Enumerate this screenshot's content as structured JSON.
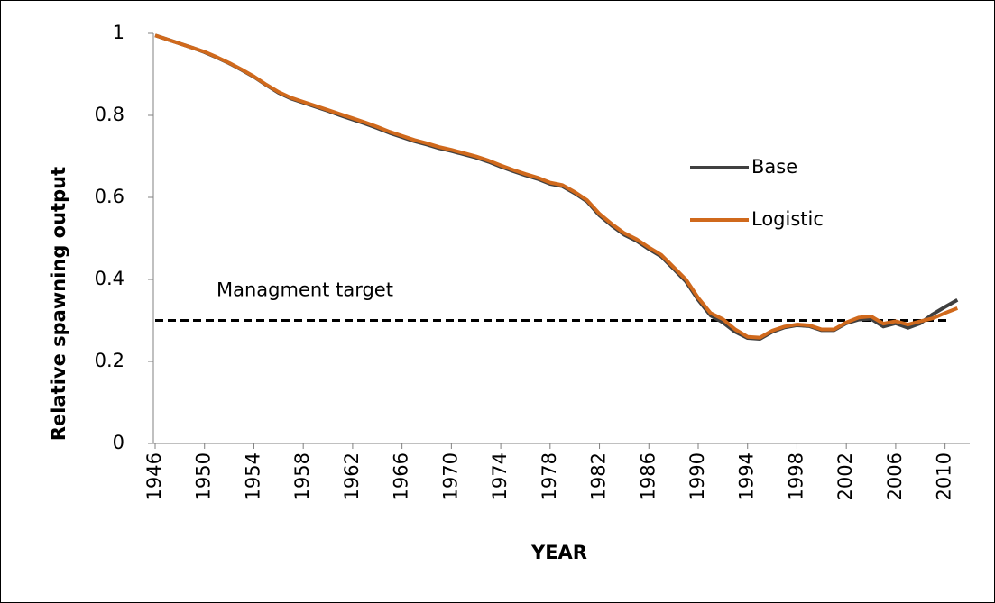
{
  "chart_data": {
    "type": "line",
    "y_label": "Relative spawning output",
    "x_label": "YEAR",
    "x": [
      1946,
      1947,
      1948,
      1949,
      1950,
      1951,
      1952,
      1953,
      1954,
      1955,
      1956,
      1957,
      1958,
      1959,
      1960,
      1961,
      1962,
      1963,
      1964,
      1965,
      1966,
      1967,
      1968,
      1969,
      1970,
      1971,
      1972,
      1973,
      1974,
      1975,
      1976,
      1977,
      1978,
      1979,
      1980,
      1981,
      1982,
      1983,
      1984,
      1985,
      1986,
      1987,
      1988,
      1989,
      1990,
      1991,
      1992,
      1993,
      1994,
      1995,
      1996,
      1997,
      1998,
      1999,
      2000,
      2001,
      2002,
      2003,
      2004,
      2005,
      2006,
      2007,
      2008,
      2009,
      2010,
      2011
    ],
    "series": [
      {
        "name": "Base",
        "color": "#404040",
        "values": [
          0.995,
          0.985,
          0.975,
          0.965,
          0.954,
          0.941,
          0.927,
          0.911,
          0.894,
          0.874,
          0.855,
          0.841,
          0.831,
          0.821,
          0.811,
          0.8,
          0.79,
          0.78,
          0.769,
          0.757,
          0.747,
          0.737,
          0.729,
          0.72,
          0.713,
          0.705,
          0.697,
          0.687,
          0.675,
          0.664,
          0.654,
          0.645,
          0.633,
          0.627,
          0.61,
          0.59,
          0.556,
          0.531,
          0.509,
          0.494,
          0.474,
          0.456,
          0.426,
          0.395,
          0.35,
          0.312,
          0.295,
          0.272,
          0.257,
          0.255,
          0.272,
          0.283,
          0.288,
          0.286,
          0.276,
          0.276,
          0.293,
          0.302,
          0.304,
          0.285,
          0.293,
          0.282,
          0.293,
          0.315,
          0.333,
          0.35
        ]
      },
      {
        "name": "Logistic",
        "color": "#d0691c",
        "values": [
          0.995,
          0.985,
          0.975,
          0.965,
          0.955,
          0.942,
          0.928,
          0.912,
          0.895,
          0.875,
          0.857,
          0.843,
          0.833,
          0.823,
          0.813,
          0.803,
          0.793,
          0.783,
          0.772,
          0.76,
          0.75,
          0.74,
          0.732,
          0.723,
          0.716,
          0.708,
          0.7,
          0.69,
          0.678,
          0.667,
          0.657,
          0.648,
          0.636,
          0.63,
          0.613,
          0.593,
          0.56,
          0.535,
          0.513,
          0.498,
          0.478,
          0.46,
          0.43,
          0.4,
          0.355,
          0.318,
          0.303,
          0.278,
          0.26,
          0.258,
          0.275,
          0.285,
          0.29,
          0.288,
          0.278,
          0.278,
          0.295,
          0.307,
          0.31,
          0.292,
          0.298,
          0.29,
          0.298,
          0.305,
          0.318,
          0.33
        ]
      }
    ],
    "reference_line": {
      "value": 0.3,
      "label": "Managment target",
      "style": "dashed",
      "color": "#000000"
    },
    "xlim": [
      1946,
      2012
    ],
    "xticks": [
      1946,
      1950,
      1954,
      1958,
      1962,
      1966,
      1970,
      1974,
      1978,
      1982,
      1986,
      1990,
      1994,
      1998,
      2002,
      2006,
      2010
    ],
    "ylim": [
      0,
      1
    ],
    "yticks": [
      0,
      0.2,
      0.4,
      0.6,
      0.8,
      1
    ]
  }
}
